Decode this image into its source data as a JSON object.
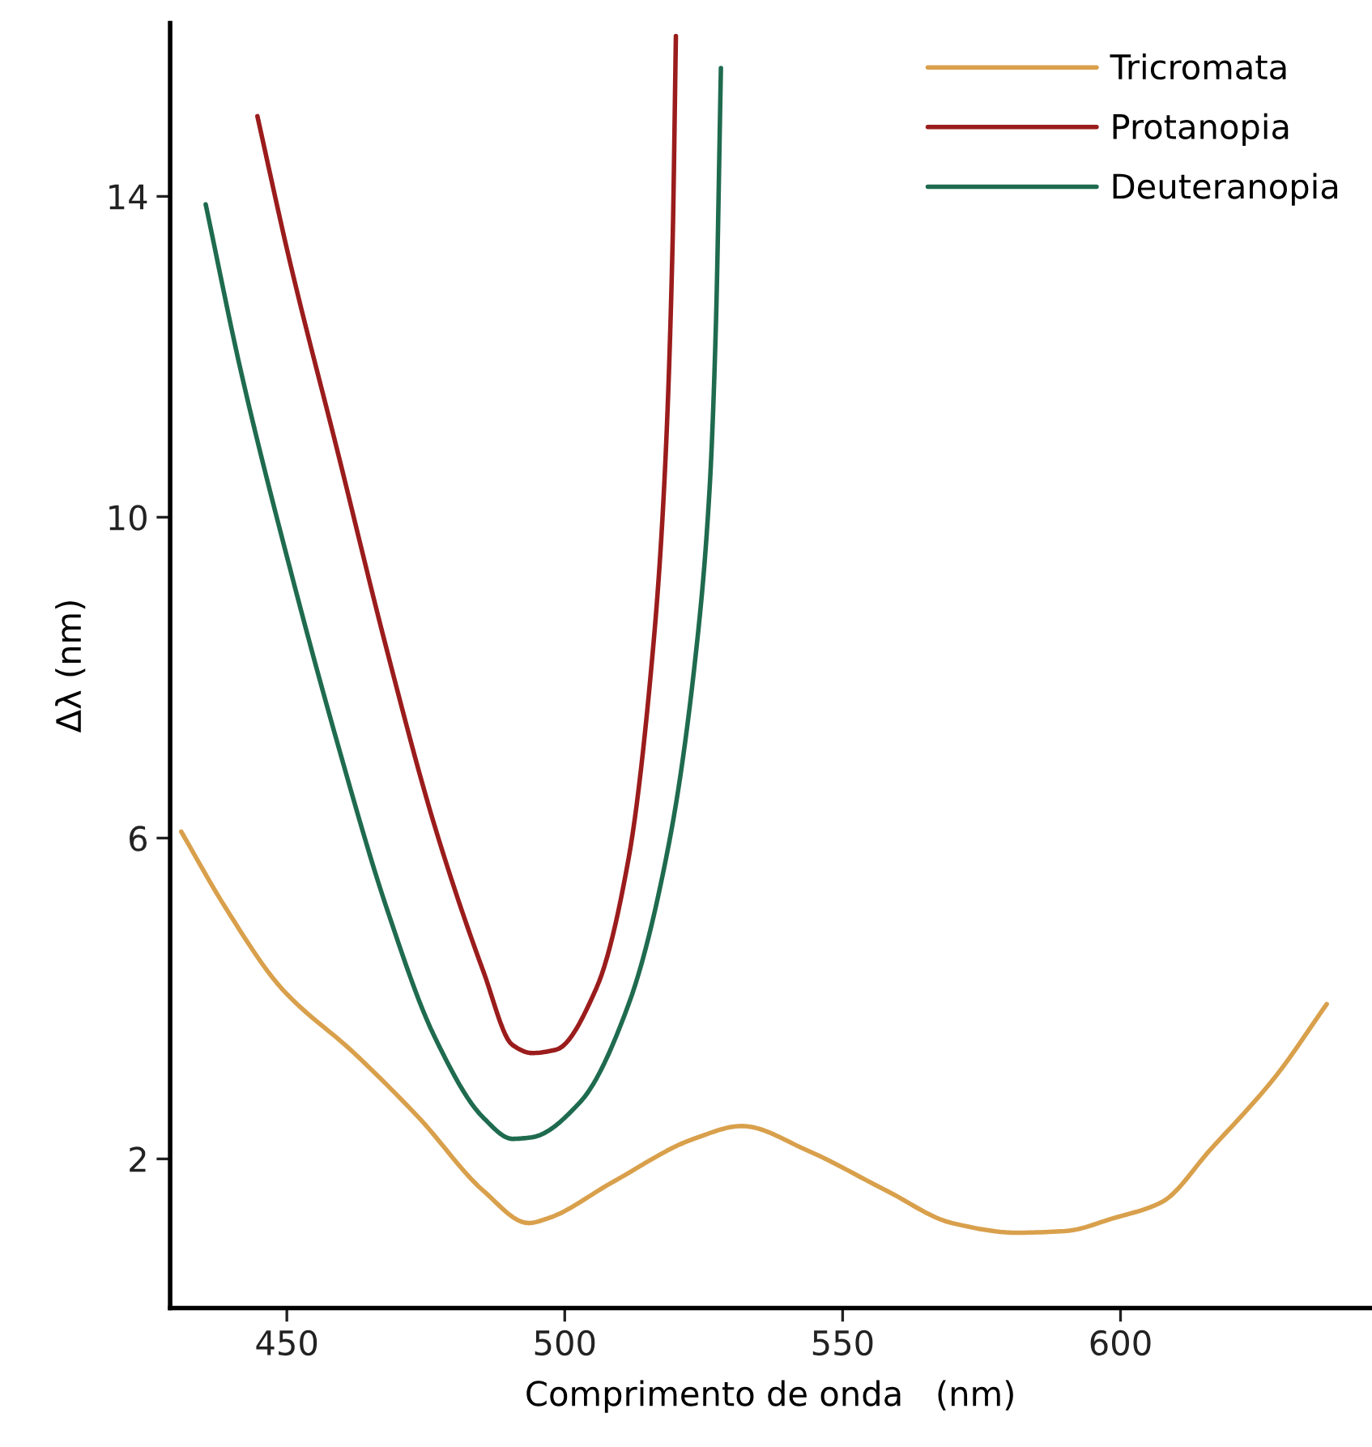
{
  "chart_data": {
    "type": "line",
    "xlabel": "Comprimento de onda   (nm)",
    "ylabel": "Δλ (nm)",
    "xlim": [
      429,
      645
    ],
    "ylim": [
      0.14,
      16.16
    ],
    "xticks": [
      450,
      500,
      550,
      600
    ],
    "yticks": [
      2,
      6,
      10,
      14
    ],
    "grid": false,
    "legend": "top right",
    "marker": "none",
    "line_style": "solid",
    "series": [
      {
        "name": "Tricromata",
        "color": "#d9a04c",
        "x": [
          431.0,
          438.9,
          449.0,
          462.1,
          473.8,
          485.4,
          493.5,
          497,
          508.6,
          523.2,
          531.9,
          543.5,
          558,
          569.7,
          581.3,
          590,
          598.7,
          607.4,
          616.1,
          627.8,
          637.1
        ],
        "values": [
          6.08,
          5.14,
          4.13,
          3.32,
          2.51,
          1.6,
          1.2,
          1.26,
          1.71,
          2.25,
          2.41,
          2.11,
          1.6,
          1.2,
          1.08,
          1.1,
          1.26,
          1.46,
          2.11,
          3.02,
          3.93
        ]
      },
      {
        "name": "Protanopia",
        "color": "#9b1c1c",
        "x": [
          444.7,
          450.5,
          459.2,
          467.9,
          476.6,
          485.4,
          490.6,
          494.1,
          498.4,
          505.7,
          511.5,
          515.9,
          517.9,
          519.4,
          520.0
        ],
        "values": [
          15.0,
          13.2,
          10.8,
          8.37,
          6.15,
          4.33,
          3.42,
          3.32,
          3.36,
          4.13,
          5.75,
          8.37,
          10.4,
          13.4,
          16.0
        ]
      },
      {
        "name": "Deuteranopia",
        "color": "#1f6b4f",
        "x": [
          435.4,
          441.8,
          450.5,
          459.2,
          467.9,
          476.6,
          485.4,
          490.6,
          494.1,
          502.8,
          511.5,
          518.8,
          523.7,
          526.1,
          527.2,
          528.1
        ],
        "values": [
          13.9,
          11.8,
          9.38,
          7.16,
          5.14,
          3.52,
          2.51,
          2.25,
          2.27,
          2.71,
          3.93,
          5.95,
          8.37,
          10.4,
          12.4,
          15.6
        ]
      }
    ]
  }
}
